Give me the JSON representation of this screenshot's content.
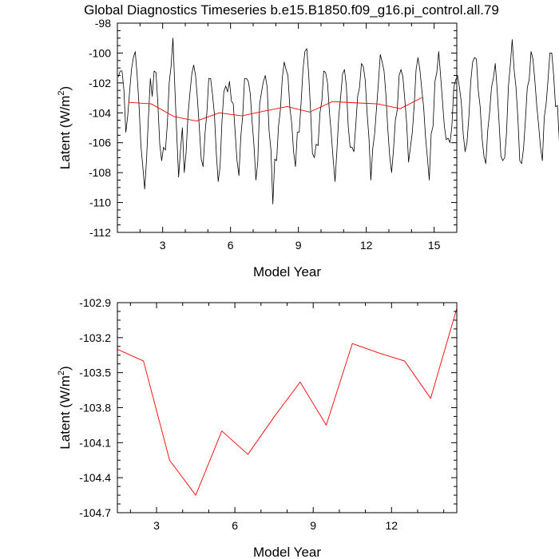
{
  "title": "Global Diagnostics Timeseries b.e15.B1850.f09_g16.pi_control.all.79",
  "colors": {
    "axis": "#000000",
    "monthly": "#000000",
    "annual": "#ff0000"
  },
  "chart_data": [
    {
      "type": "line",
      "xlabel": "Model Year",
      "ylabel_main": "Latent (W/m",
      "ylabel_sup": "2",
      "ylabel_close": ")",
      "xlim": [
        1,
        16
      ],
      "ylim": [
        -112,
        -98
      ],
      "xticks": [
        3,
        6,
        9,
        12,
        15
      ],
      "yticks": [
        -112,
        -110,
        -108,
        -106,
        -104,
        -102,
        -100,
        -98
      ],
      "series": [
        {
          "name": "monthly",
          "color": "#000000",
          "x0": 1.04,
          "dx": 0.0833,
          "values": [
            -101.6,
            -101.2,
            -101.2,
            -102.5,
            -105.3,
            -104.2,
            -102.6,
            -101.1,
            -100.3,
            -99.9,
            -101.5,
            -103.5,
            -106.2,
            -107.6,
            -109.1,
            -107.1,
            -104.3,
            -101.7,
            -102.9,
            -101.2,
            -101.3,
            -103.4,
            -106.1,
            -107.2,
            -106.3,
            -106.5,
            -104.8,
            -102.0,
            -100.9,
            -99.0,
            -102.3,
            -105.4,
            -108.3,
            -106.5,
            -105.0,
            -108.0,
            -106.6,
            -104.1,
            -102.7,
            -101.4,
            -100.8,
            -101.5,
            -103.1,
            -105.0,
            -107.1,
            -107.6,
            -105.4,
            -104.0,
            -101.7,
            -101.7,
            -102.8,
            -104.1,
            -106.7,
            -108.6,
            -107.6,
            -104.6,
            -102.6,
            -102.2,
            -102.6,
            -101.9,
            -103.2,
            -103.4,
            -105.3,
            -107.2,
            -108.2,
            -105.6,
            -104.2,
            -101.7,
            -101.7,
            -101.9,
            -102.7,
            -104.6,
            -106.2,
            -108.5,
            -107.3,
            -103.4,
            -102.6,
            -101.9,
            -101.5,
            -102.3,
            -105.2,
            -106.5,
            -110.1,
            -107.1,
            -107.2,
            -104.9,
            -103.8,
            -101.7,
            -100.6,
            -101.1,
            -101.5,
            -103.6,
            -104.7,
            -106.6,
            -107.6,
            -105.3,
            -105.3,
            -103.3,
            -101.1,
            -99.9,
            -99.7,
            -101.4,
            -103.8,
            -106.7,
            -107.0,
            -106.1,
            -106.2,
            -104.0,
            -103.2,
            -101.2,
            -101.3,
            -102.0,
            -103.9,
            -105.4,
            -107.1,
            -108.6,
            -106.5,
            -104.2,
            -102.9,
            -101.4,
            -101.1,
            -102.2,
            -104.9,
            -106.3,
            -106.3,
            -106.6,
            -104.8,
            -102.9,
            -102.3,
            -100.7,
            -100.9,
            -101.8,
            -104.0,
            -105.7,
            -108.5,
            -106.4,
            -105.4,
            -103.7,
            -102.0,
            -100.1,
            -100.6,
            -101.2,
            -102.8,
            -105.1,
            -106.9,
            -108.0,
            -106.5,
            -104.5,
            -103.8,
            -101.5,
            -101.1,
            -101.6,
            -103.1,
            -104.7,
            -107.3,
            -106.3,
            -105.3,
            -103.5,
            -101.1,
            -100.3,
            -101.1,
            -102.4,
            -103.6,
            -105.6,
            -107.0,
            -108.5,
            -105.4,
            -104.9,
            -101.9,
            -101.3,
            -99.9,
            -101.5,
            -103.2,
            -104.9,
            -105.8,
            -105.7,
            -106.0,
            -104.9,
            -102.3,
            -101.8,
            -101.5,
            -102.3,
            -103.3,
            -105.4,
            -106.6,
            -106.0,
            -104.3,
            -101.9,
            -100.6,
            -100.3,
            -100.4,
            -102.5,
            -103.6,
            -105.7,
            -106.9,
            -107.4,
            -105.2,
            -104.0,
            -102.3,
            -101.7,
            -100.7,
            -102.4,
            -104.6,
            -106.9,
            -107.2,
            -107.0,
            -105.3,
            -102.2,
            -100.8,
            -99.1,
            -101.1,
            -102.3,
            -104.3,
            -107.2,
            -107.4,
            -106.4,
            -104.5,
            -102.3,
            -101.8,
            -99.9,
            -100.4,
            -101.8,
            -103.5,
            -104.8,
            -106.3,
            -107.2,
            -104.3,
            -103.4,
            -101.8,
            -100.0,
            -100.0,
            -101.5,
            -103.6,
            -103.5,
            -105.9,
            -106.9,
            -105.1,
            -104.0,
            -101.8,
            -101.9,
            -101.8,
            -102.6,
            -104.9,
            -107.2
          ]
        },
        {
          "name": "annual",
          "color": "#ff0000",
          "x": [
            1.5,
            2.5,
            3.5,
            4.5,
            5.5,
            6.5,
            7.5,
            8.5,
            9.5,
            10.5,
            11.5,
            12.5,
            13.5,
            14.5
          ],
          "values": [
            -103.3,
            -103.4,
            -104.25,
            -104.55,
            -104.0,
            -104.2,
            -103.88,
            -103.58,
            -103.95,
            -103.25,
            -103.33,
            -103.4,
            -103.72,
            -102.95
          ]
        }
      ]
    },
    {
      "type": "line",
      "xlabel": "Model Year",
      "ylabel_main": "Latent (W/m",
      "ylabel_sup": "2",
      "ylabel_close": ")",
      "xlim": [
        1.5,
        14.5
      ],
      "ylim": [
        -104.7,
        -102.9
      ],
      "xticks": [
        3,
        6,
        9,
        12
      ],
      "yticks": [
        -104.7,
        -104.4,
        -104.1,
        -103.8,
        -103.5,
        -103.2,
        -102.9
      ],
      "series": [
        {
          "name": "annual",
          "color": "#ff0000",
          "x": [
            1.5,
            2.5,
            3.5,
            4.5,
            5.5,
            6.5,
            7.5,
            8.5,
            9.5,
            10.5,
            11.5,
            12.5,
            13.5,
            14.5
          ],
          "values": [
            -103.3,
            -103.4,
            -104.25,
            -104.55,
            -104.0,
            -104.2,
            -103.88,
            -103.58,
            -103.95,
            -103.25,
            -103.33,
            -103.4,
            -103.72,
            -102.95
          ]
        }
      ]
    }
  ]
}
